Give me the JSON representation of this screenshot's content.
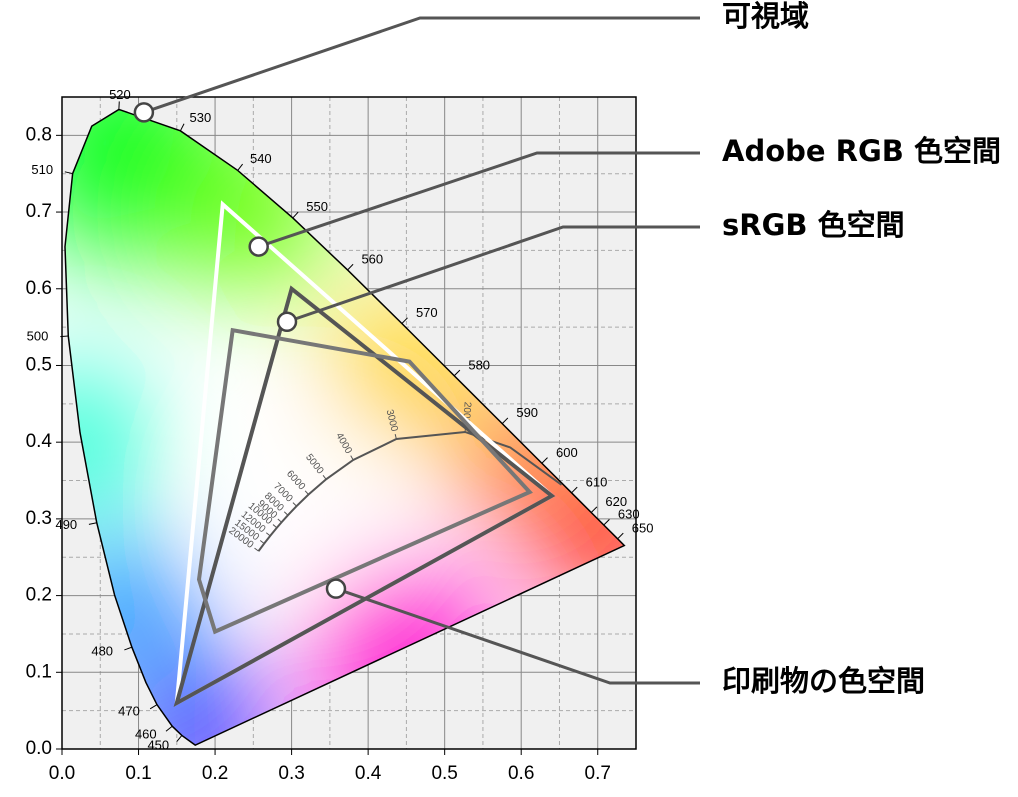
{
  "chart_data": {
    "type": "chromaticity",
    "xlim": [
      0,
      0.75
    ],
    "ylim": [
      0,
      0.85
    ],
    "xticks": [
      {
        "value": 0,
        "label": "0.0"
      },
      0.1,
      0.2,
      0.3,
      0.4,
      0.5,
      0.6,
      0.7
    ],
    "yticks": [
      {
        "value": 0,
        "label": "0.0"
      },
      0.1,
      0.2,
      0.3,
      0.4,
      0.5,
      0.6,
      0.7,
      0.8
    ],
    "x_minor_ticks": [
      0.05,
      0.15,
      0.25,
      0.35,
      0.45,
      0.55,
      0.65
    ],
    "y_minor_ticks": [
      0.05,
      0.15,
      0.25,
      0.35,
      0.45,
      0.55,
      0.65,
      0.75
    ],
    "grid": true,
    "background": "#f0f0f0",
    "spectral_locus": {
      "name": "可視域",
      "color": "#000000",
      "callout": [
        0.107,
        0.83
      ],
      "labels": [
        null,
        450,
        460,
        470,
        null,
        480,
        null,
        490,
        null,
        500,
        null,
        510,
        null,
        520,
        530,
        540,
        550,
        560,
        570,
        580,
        590,
        600,
        610,
        620,
        630,
        650,
        null
      ],
      "x": [
        0.1741,
        0.1566,
        0.144,
        0.1241,
        0.1096,
        0.0913,
        0.0687,
        0.0454,
        0.0235,
        0.0082,
        0.0039,
        0.0139,
        0.0389,
        0.0743,
        0.1547,
        0.2296,
        0.3016,
        0.3731,
        0.4441,
        0.5125,
        0.5752,
        0.627,
        0.6658,
        0.6915,
        0.7079,
        0.726,
        0.7347
      ],
      "y": [
        0.005,
        0.0177,
        0.0297,
        0.0578,
        0.0868,
        0.1327,
        0.2007,
        0.295,
        0.4127,
        0.5384,
        0.6548,
        0.7502,
        0.812,
        0.8338,
        0.8059,
        0.7543,
        0.6923,
        0.6245,
        0.5547,
        0.4866,
        0.4242,
        0.3725,
        0.334,
        0.3083,
        0.292,
        0.274,
        0.2653
      ]
    },
    "planckian_locus": {
      "color": "#555555",
      "labels": [
        null,
        null,
        2000,
        3000,
        4000,
        5000,
        6000,
        7000,
        8000,
        9000,
        10000,
        12000,
        15000,
        20000
      ],
      "x": [
        0.6527,
        0.5857,
        0.5267,
        0.4369,
        0.3805,
        0.3451,
        0.3221,
        0.3064,
        0.2952,
        0.2869,
        0.2807,
        0.272,
        0.2642,
        0.2568
      ],
      "y": [
        0.3444,
        0.3931,
        0.4133,
        0.4041,
        0.3768,
        0.3516,
        0.3318,
        0.3166,
        0.3048,
        0.2956,
        0.2884,
        0.2779,
        0.2679,
        0.258
      ]
    },
    "series": [
      {
        "name": "Adobe RGB 色空間",
        "color": "#ffffff",
        "callout": [
          0.257,
          0.655
        ],
        "x": [
          0.64,
          0.21,
          0.15
        ],
        "y": [
          0.33,
          0.71,
          0.06
        ]
      },
      {
        "name": "sRGB 色空間",
        "color": "#555555",
        "callout": [
          0.294,
          0.557
        ],
        "x": [
          0.64,
          0.3,
          0.15
        ],
        "y": [
          0.33,
          0.6,
          0.06
        ]
      },
      {
        "name": "印刷物の色空間",
        "color": "#777777",
        "callout": [
          0.358,
          0.209
        ],
        "x": [
          0.223,
          0.454,
          0.611,
          0.2,
          0.179
        ],
        "y": [
          0.546,
          0.505,
          0.335,
          0.153,
          0.221
        ]
      }
    ]
  }
}
